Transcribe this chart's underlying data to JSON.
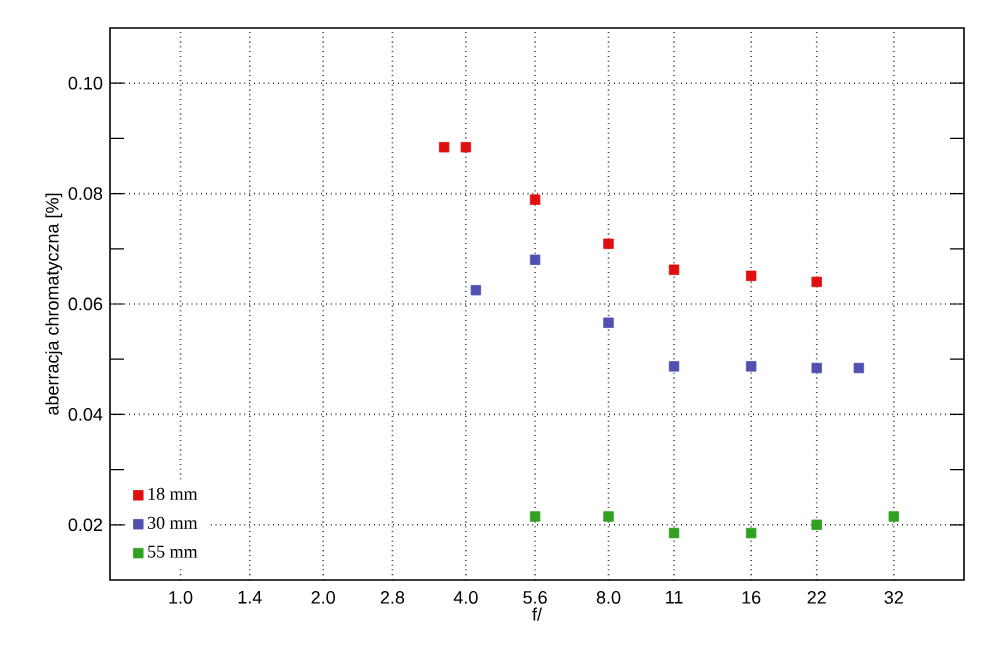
{
  "chart_data": {
    "type": "scatter",
    "xlabel": "f/",
    "ylabel": "aberracja chromatyczna [%]",
    "log": "x",
    "xlim": [
      0.71,
      45
    ],
    "ylim": [
      0.01,
      0.11
    ],
    "xticks": [
      {
        "value": 1,
        "label": "1.0"
      },
      1.4,
      {
        "value": 2,
        "label": "2.0"
      },
      2.8,
      {
        "value": 4,
        "label": "4.0"
      },
      5.6,
      {
        "value": 8,
        "label": "8.0"
      },
      11,
      16,
      22,
      32
    ],
    "yticks": [
      0.02,
      {
        "value": 0.03,
        "label": null
      },
      0.04,
      {
        "value": 0.05,
        "label": null
      },
      0.06,
      {
        "value": 0.07,
        "label": null
      },
      0.08,
      {
        "value": 0.09,
        "label": null
      },
      {
        "value": 0.1,
        "label": "0.10"
      }
    ],
    "grid": true,
    "legend": "bottom left",
    "marker": "square",
    "series": [
      {
        "name": "18 mm",
        "color": "#e01010",
        "x": [
          3.6,
          4,
          5.6,
          8,
          11,
          16,
          22
        ],
        "values": [
          0.0884,
          0.0884,
          0.0789,
          0.0709,
          0.0662,
          0.0651,
          0.064
        ]
      },
      {
        "name": "30 mm",
        "color": "#5050b0",
        "x": [
          4.2,
          5.6,
          8,
          11,
          16,
          22,
          27
        ],
        "values": [
          0.0625,
          0.068,
          0.0566,
          0.0487,
          0.0487,
          0.0484,
          0.0484
        ]
      },
      {
        "name": "55 mm",
        "color": "#30a020",
        "x": [
          5.6,
          8,
          11,
          16,
          22,
          32
        ],
        "values": [
          0.0215,
          0.0215,
          0.0185,
          0.0185,
          0.02,
          0.0215
        ]
      }
    ]
  }
}
